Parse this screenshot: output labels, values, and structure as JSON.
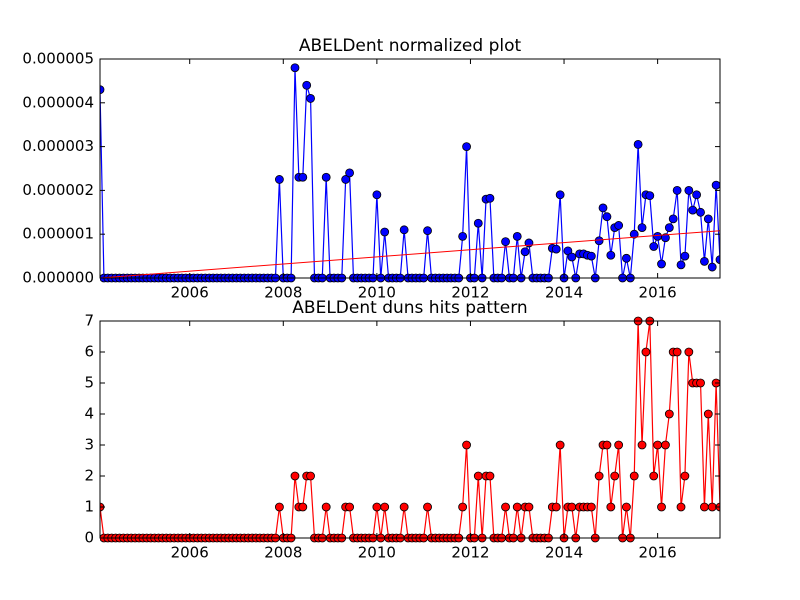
{
  "chart_data": [
    {
      "type": "line",
      "title": "ABELDent normalized plot",
      "x": [
        2004.083,
        2004.167,
        2004.25,
        2004.333,
        2004.417,
        2004.5,
        2004.583,
        2004.667,
        2004.75,
        2004.833,
        2004.917,
        2005.0,
        2005.083,
        2005.167,
        2005.25,
        2005.333,
        2005.417,
        2005.5,
        2005.583,
        2005.667,
        2005.75,
        2005.833,
        2005.917,
        2006.0,
        2006.083,
        2006.167,
        2006.25,
        2006.333,
        2006.417,
        2006.5,
        2006.583,
        2006.667,
        2006.75,
        2006.833,
        2006.917,
        2007.0,
        2007.083,
        2007.167,
        2007.25,
        2007.333,
        2007.417,
        2007.5,
        2007.583,
        2007.667,
        2007.75,
        2007.833,
        2007.917,
        2008.0,
        2008.083,
        2008.167,
        2008.25,
        2008.333,
        2008.417,
        2008.5,
        2008.583,
        2008.667,
        2008.75,
        2008.833,
        2008.917,
        2009.0,
        2009.083,
        2009.167,
        2009.25,
        2009.333,
        2009.417,
        2009.5,
        2009.583,
        2009.667,
        2009.75,
        2009.833,
        2009.917,
        2010.0,
        2010.083,
        2010.167,
        2010.25,
        2010.333,
        2010.417,
        2010.5,
        2010.583,
        2010.667,
        2010.75,
        2010.833,
        2010.917,
        2011.0,
        2011.083,
        2011.167,
        2011.25,
        2011.333,
        2011.417,
        2011.5,
        2011.583,
        2011.667,
        2011.75,
        2011.833,
        2011.917,
        2012.0,
        2012.083,
        2012.167,
        2012.25,
        2012.333,
        2012.417,
        2012.5,
        2012.583,
        2012.667,
        2012.75,
        2012.833,
        2012.917,
        2013.0,
        2013.083,
        2013.167,
        2013.25,
        2013.333,
        2013.417,
        2013.5,
        2013.583,
        2013.667,
        2013.75,
        2013.833,
        2013.917,
        2014.0,
        2014.083,
        2014.167,
        2014.25,
        2014.333,
        2014.417,
        2014.5,
        2014.583,
        2014.667,
        2014.75,
        2014.833,
        2014.917,
        2015.0,
        2015.083,
        2015.167,
        2015.25,
        2015.333,
        2015.417,
        2015.5,
        2015.583,
        2015.667,
        2015.75,
        2015.833,
        2015.917,
        2016.0,
        2016.083,
        2016.167,
        2016.25,
        2016.333,
        2016.417,
        2016.5,
        2016.583,
        2016.667,
        2016.75,
        2016.833,
        2016.917,
        2017.0,
        2017.083,
        2017.167,
        2017.25,
        2017.333
      ],
      "series": [
        {
          "color": "#0000ff",
          "values": [
            4.3e-06,
            0,
            0,
            0,
            0,
            0,
            0,
            0,
            0,
            0,
            0,
            0,
            0,
            0,
            0,
            0,
            0,
            0,
            0,
            0,
            0,
            0,
            0,
            0,
            0,
            0,
            0,
            0,
            0,
            0,
            0,
            0,
            0,
            0,
            0,
            0,
            0,
            0,
            0,
            0,
            0,
            0,
            0,
            0,
            0,
            0,
            2.25e-06,
            0,
            0,
            0,
            4.8e-06,
            2.3e-06,
            2.3e-06,
            4.4e-06,
            4.1e-06,
            0,
            0,
            0,
            2.3e-06,
            0,
            0,
            0,
            0,
            2.25e-06,
            2.4e-06,
            0,
            0,
            0,
            0,
            0,
            0,
            1.9e-06,
            0,
            1.05e-06,
            0,
            0,
            0,
            0,
            1.1e-06,
            0,
            0,
            0,
            0,
            0,
            1.08e-06,
            0,
            0,
            0,
            0,
            0,
            0,
            0,
            0,
            9.5e-07,
            3e-06,
            0,
            0,
            1.25e-06,
            0,
            1.8e-06,
            1.82e-06,
            0,
            0,
            0,
            8.3e-07,
            0,
            0,
            9.5e-07,
            0,
            6e-07,
            8e-07,
            0,
            0,
            0,
            0,
            0,
            6.8e-07,
            6.6e-07,
            1.9e-06,
            0,
            6.2e-07,
            4.8e-07,
            0,
            5.5e-07,
            5.5e-07,
            5.2e-07,
            5e-07,
            0,
            8.5e-07,
            1.6e-06,
            1.4e-06,
            5.2e-07,
            1.15e-06,
            1.2e-06,
            0,
            4.5e-07,
            0,
            1e-06,
            3.05e-06,
            1.15e-06,
            1.9e-06,
            1.88e-06,
            7.2e-07,
            9.5e-07,
            3.2e-07,
            9.2e-07,
            1.15e-06,
            1.35e-06,
            2e-06,
            3e-07,
            5e-07,
            2e-06,
            1.55e-06,
            1.9e-06,
            1.5e-06,
            3.8e-07,
            1.35e-06,
            2.5e-07,
            2.12e-06,
            4.2e-07
          ]
        }
      ],
      "trend": {
        "color": "#ff0000",
        "x": [
          2004.083,
          2017.333
        ],
        "values": [
          0,
          1.08e-06
        ]
      },
      "xlim": [
        2004.083,
        2017.333
      ],
      "xticks": [
        2006,
        2008,
        2010,
        2012,
        2014,
        2016
      ],
      "ylim": [
        0,
        5e-06
      ],
      "yticks": [
        {
          "value": 0,
          "label": "0.000000"
        },
        {
          "value": 1e-06,
          "label": "0.000001"
        },
        {
          "value": 2e-06,
          "label": "0.000002"
        },
        {
          "value": 3e-06,
          "label": "0.000003"
        },
        {
          "value": 4e-06,
          "label": "0.000004"
        },
        {
          "value": 5e-06,
          "label": "0.000005"
        }
      ]
    },
    {
      "type": "line",
      "title": "ABELDent duns hits pattern",
      "x": [
        2004.083,
        2004.167,
        2004.25,
        2004.333,
        2004.417,
        2004.5,
        2004.583,
        2004.667,
        2004.75,
        2004.833,
        2004.917,
        2005.0,
        2005.083,
        2005.167,
        2005.25,
        2005.333,
        2005.417,
        2005.5,
        2005.583,
        2005.667,
        2005.75,
        2005.833,
        2005.917,
        2006.0,
        2006.083,
        2006.167,
        2006.25,
        2006.333,
        2006.417,
        2006.5,
        2006.583,
        2006.667,
        2006.75,
        2006.833,
        2006.917,
        2007.0,
        2007.083,
        2007.167,
        2007.25,
        2007.333,
        2007.417,
        2007.5,
        2007.583,
        2007.667,
        2007.75,
        2007.833,
        2007.917,
        2008.0,
        2008.083,
        2008.167,
        2008.25,
        2008.333,
        2008.417,
        2008.5,
        2008.583,
        2008.667,
        2008.75,
        2008.833,
        2008.917,
        2009.0,
        2009.083,
        2009.167,
        2009.25,
        2009.333,
        2009.417,
        2009.5,
        2009.583,
        2009.667,
        2009.75,
        2009.833,
        2009.917,
        2010.0,
        2010.083,
        2010.167,
        2010.25,
        2010.333,
        2010.417,
        2010.5,
        2010.583,
        2010.667,
        2010.75,
        2010.833,
        2010.917,
        2011.0,
        2011.083,
        2011.167,
        2011.25,
        2011.333,
        2011.417,
        2011.5,
        2011.583,
        2011.667,
        2011.75,
        2011.833,
        2011.917,
        2012.0,
        2012.083,
        2012.167,
        2012.25,
        2012.333,
        2012.417,
        2012.5,
        2012.583,
        2012.667,
        2012.75,
        2012.833,
        2012.917,
        2013.0,
        2013.083,
        2013.167,
        2013.25,
        2013.333,
        2013.417,
        2013.5,
        2013.583,
        2013.667,
        2013.75,
        2013.833,
        2013.917,
        2014.0,
        2014.083,
        2014.167,
        2014.25,
        2014.333,
        2014.417,
        2014.5,
        2014.583,
        2014.667,
        2014.75,
        2014.833,
        2014.917,
        2015.0,
        2015.083,
        2015.167,
        2015.25,
        2015.333,
        2015.417,
        2015.5,
        2015.583,
        2015.667,
        2015.75,
        2015.833,
        2015.917,
        2016.0,
        2016.083,
        2016.167,
        2016.25,
        2016.333,
        2016.417,
        2016.5,
        2016.583,
        2016.667,
        2016.75,
        2016.833,
        2016.917,
        2017.0,
        2017.083,
        2017.167,
        2017.25,
        2017.333
      ],
      "series": [
        {
          "color": "#ff0000",
          "values": [
            1,
            0,
            0,
            0,
            0,
            0,
            0,
            0,
            0,
            0,
            0,
            0,
            0,
            0,
            0,
            0,
            0,
            0,
            0,
            0,
            0,
            0,
            0,
            0,
            0,
            0,
            0,
            0,
            0,
            0,
            0,
            0,
            0,
            0,
            0,
            0,
            0,
            0,
            0,
            0,
            0,
            0,
            0,
            0,
            0,
            0,
            1,
            0,
            0,
            0,
            2,
            1,
            1,
            2,
            2,
            0,
            0,
            0,
            1,
            0,
            0,
            0,
            0,
            1,
            1,
            0,
            0,
            0,
            0,
            0,
            0,
            1,
            0,
            1,
            0,
            0,
            0,
            0,
            1,
            0,
            0,
            0,
            0,
            0,
            1,
            0,
            0,
            0,
            0,
            0,
            0,
            0,
            0,
            1,
            3,
            0,
            0,
            2,
            0,
            2,
            2,
            0,
            0,
            0,
            1,
            0,
            0,
            1,
            0,
            1,
            1,
            0,
            0,
            0,
            0,
            0,
            1,
            1,
            3,
            0,
            1,
            1,
            0,
            1,
            1,
            1,
            1,
            0,
            2,
            3,
            3,
            1,
            2,
            3,
            0,
            1,
            0,
            2,
            7,
            3,
            6,
            7,
            2,
            3,
            1,
            3,
            4,
            6,
            6,
            1,
            2,
            6,
            5,
            5,
            5,
            1,
            4,
            1,
            5,
            1
          ]
        }
      ],
      "xlim": [
        2004.083,
        2017.333
      ],
      "xticks": [
        2006,
        2008,
        2010,
        2012,
        2014,
        2016
      ],
      "ylim": [
        0,
        7
      ],
      "yticks": [
        0,
        1,
        2,
        3,
        4,
        5,
        6,
        7
      ]
    }
  ]
}
